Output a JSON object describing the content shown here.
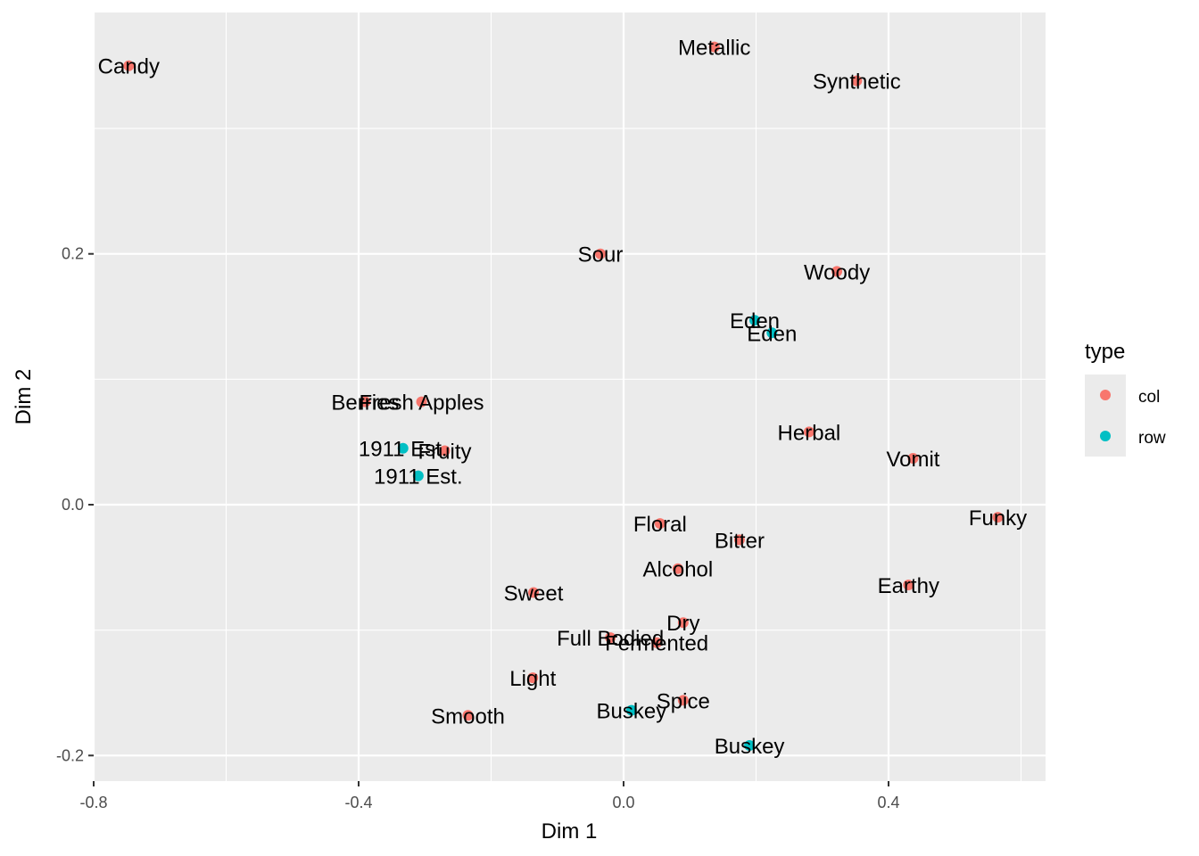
{
  "chart_data": {
    "type": "scatter",
    "title": "",
    "xlabel": "Dim 1",
    "ylabel": "Dim 2",
    "xlim": [
      -0.8,
      0.63
    ],
    "ylim": [
      -0.22,
      0.385
    ],
    "x_ticks": [
      -0.8,
      -0.4,
      0.0,
      0.4
    ],
    "x_tick_labels": [
      "-0.8",
      "-0.4",
      "0.0",
      "0.4"
    ],
    "y_ticks": [
      -0.2,
      0.0,
      0.2
    ],
    "y_tick_labels": [
      "-0.2",
      "0.0",
      "0.2"
    ],
    "grid": true,
    "legend": {
      "title": "type",
      "position": "right",
      "entries": [
        {
          "name": "col",
          "color": "#F8766D"
        },
        {
          "name": "row",
          "color": "#00BFC4"
        }
      ]
    },
    "series": [
      {
        "name": "col",
        "color": "#F8766D",
        "points": [
          {
            "label": "Candy",
            "x": -0.747,
            "y": 0.35
          },
          {
            "label": "Metallic",
            "x": 0.137,
            "y": 0.365
          },
          {
            "label": "Synthetic",
            "x": 0.352,
            "y": 0.338
          },
          {
            "label": "Sour",
            "x": -0.035,
            "y": 0.2
          },
          {
            "label": "Woody",
            "x": 0.322,
            "y": 0.186
          },
          {
            "label": "Berries",
            "x": -0.39,
            "y": 0.082
          },
          {
            "label": "Fresh Apples",
            "x": -0.305,
            "y": 0.082
          },
          {
            "label": "Fruity",
            "x": -0.27,
            "y": 0.043
          },
          {
            "label": "Herbal",
            "x": 0.28,
            "y": 0.058
          },
          {
            "label": "Vomit",
            "x": 0.437,
            "y": 0.037
          },
          {
            "label": "Funky",
            "x": 0.565,
            "y": -0.01
          },
          {
            "label": "Floral",
            "x": 0.055,
            "y": -0.015
          },
          {
            "label": "Bitter",
            "x": 0.175,
            "y": -0.028
          },
          {
            "label": "Alcohol",
            "x": 0.082,
            "y": -0.051
          },
          {
            "label": "Earthy",
            "x": 0.43,
            "y": -0.064
          },
          {
            "label": "Sweet",
            "x": -0.136,
            "y": -0.07
          },
          {
            "label": "Dry",
            "x": 0.09,
            "y": -0.094
          },
          {
            "label": "Full Bodied",
            "x": -0.02,
            "y": -0.106
          },
          {
            "label": "Fermented",
            "x": 0.05,
            "y": -0.11
          },
          {
            "label": "Light",
            "x": -0.137,
            "y": -0.138
          },
          {
            "label": "Spice",
            "x": 0.09,
            "y": -0.156
          },
          {
            "label": "Smooth",
            "x": -0.235,
            "y": -0.168
          }
        ]
      },
      {
        "name": "row",
        "color": "#00BFC4",
        "points": [
          {
            "label": "Eden",
            "x": 0.198,
            "y": 0.147
          },
          {
            "label": "Eden",
            "x": 0.224,
            "y": 0.137
          },
          {
            "label": "1911 Est.",
            "x": -0.333,
            "y": 0.045
          },
          {
            "label": "1911 Est.",
            "x": -0.31,
            "y": 0.023
          },
          {
            "label": "Buskey",
            "x": 0.012,
            "y": -0.164
          },
          {
            "label": "Buskey",
            "x": 0.19,
            "y": -0.192
          }
        ]
      }
    ]
  }
}
